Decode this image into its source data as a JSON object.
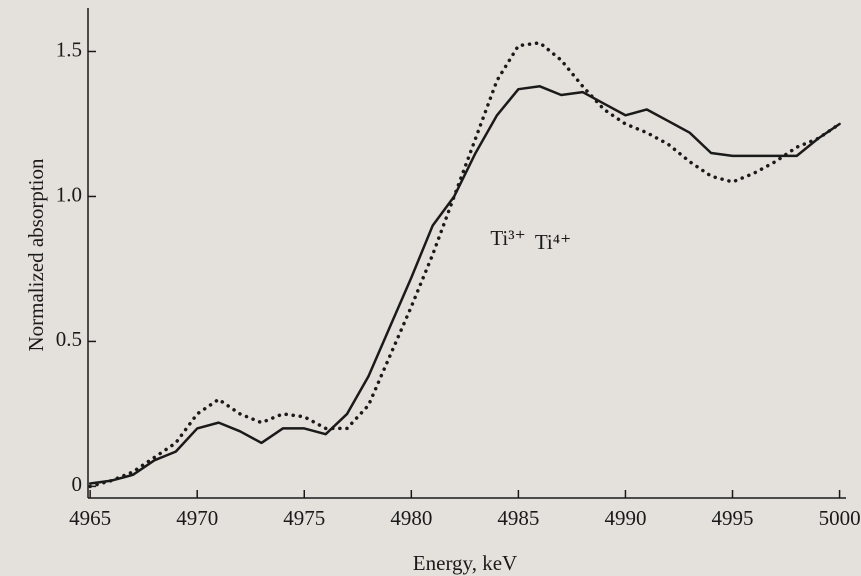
{
  "chart_data": {
    "type": "line",
    "xlabel": "Energy, keV",
    "ylabel": "Normalized absorption",
    "annotations": [
      "Ti³⁺",
      "Ti⁴⁺"
    ],
    "x": [
      4965,
      4966,
      4967,
      4968,
      4969,
      4970,
      4971,
      4972,
      4973,
      4974,
      4975,
      4976,
      4977,
      4978,
      4979,
      4980,
      4981,
      4982,
      4983,
      4984,
      4985,
      4986,
      4987,
      4988,
      4989,
      4990,
      4991,
      4992,
      4993,
      4994,
      4995,
      4996,
      4997,
      4998,
      4999,
      5000
    ],
    "series": [
      {
        "color": "#1a1a1a",
        "line_style": "solid",
        "values": [
          0.01,
          0.02,
          0.04,
          0.09,
          0.12,
          0.2,
          0.22,
          0.19,
          0.15,
          0.2,
          0.2,
          0.18,
          0.25,
          0.38,
          0.55,
          0.72,
          0.9,
          1.0,
          1.15,
          1.28,
          1.37,
          1.38,
          1.35,
          1.36,
          1.32,
          1.28,
          1.3,
          1.26,
          1.22,
          1.15,
          1.14,
          1.14,
          1.14,
          1.14,
          1.2,
          1.25
        ]
      },
      {
        "color": "#1a1a1a",
        "line_style": "dotted",
        "values": [
          0,
          0.02,
          0.05,
          0.1,
          0.15,
          0.25,
          0.3,
          0.25,
          0.22,
          0.25,
          0.24,
          0.2,
          0.2,
          0.28,
          0.45,
          0.62,
          0.8,
          1.0,
          1.2,
          1.4,
          1.52,
          1.53,
          1.47,
          1.38,
          1.3,
          1.25,
          1.22,
          1.18,
          1.12,
          1.07,
          1.05,
          1.08,
          1.12,
          1.17,
          1.2,
          1.25
        ]
      }
    ],
    "xlim": [
      4964.9,
      5000.3
    ],
    "xticks": [
      4965,
      4970,
      4975,
      4980,
      4985,
      4990,
      4995,
      5000
    ],
    "ylim": [
      -0.04,
      1.65
    ],
    "yticks": [
      0,
      0.5,
      {
        "value": 1,
        "label": "1.0"
      },
      1.5
    ]
  }
}
